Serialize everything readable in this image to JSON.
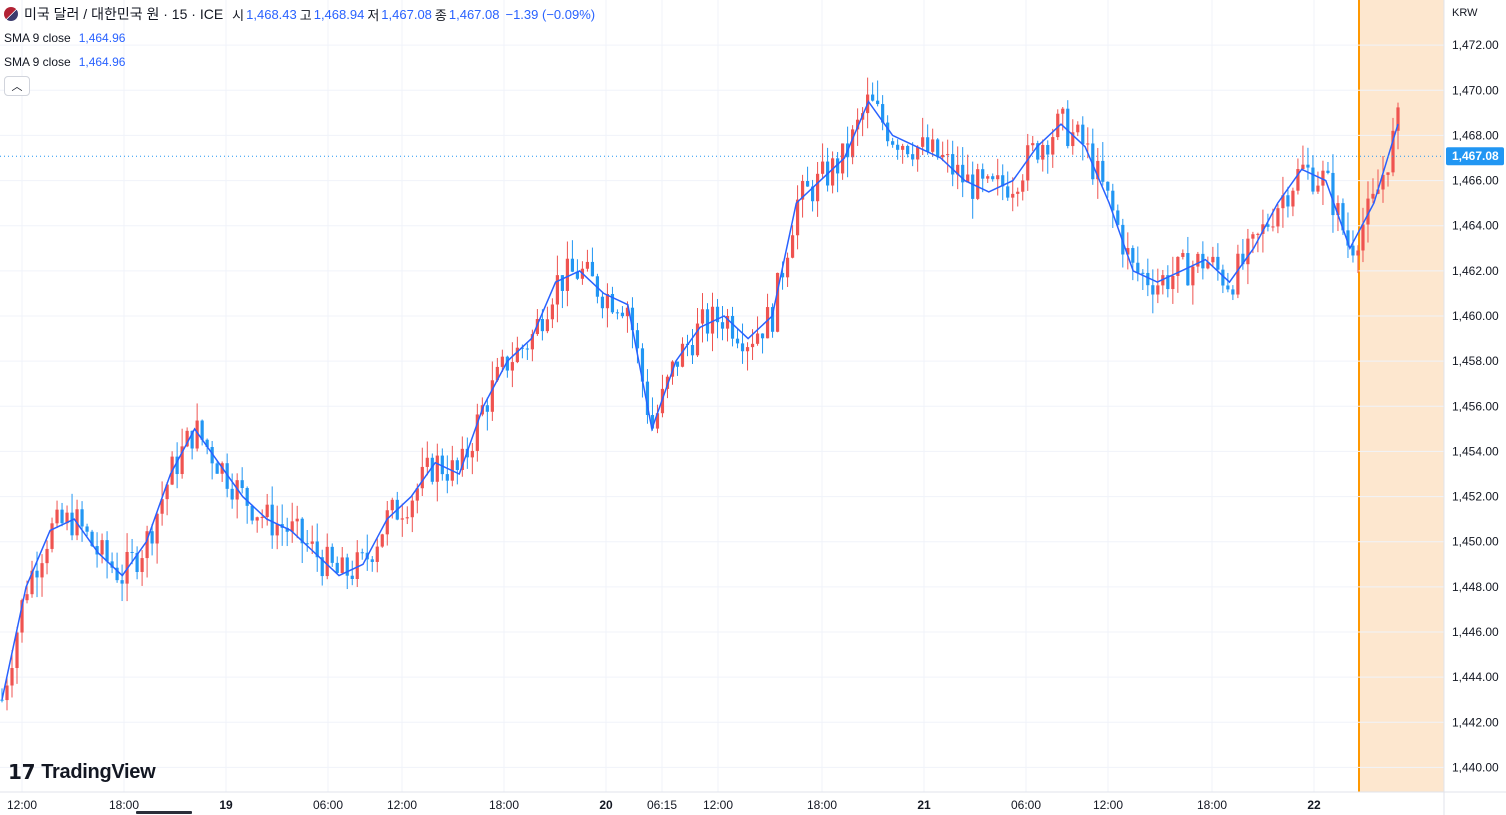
{
  "header": {
    "symbol_title": "미국 달러 / 대한민국 원 · 15 · ICE",
    "open_label": "시",
    "open_value": "1,468.43",
    "high_label": "고",
    "high_value": "1,468.94",
    "low_label": "저",
    "low_value": "1,467.08",
    "close_label": "종",
    "close_value": "1,467.08",
    "change": "−1.39 (−0.09%)"
  },
  "indicators": [
    {
      "label": "SMA 9 close",
      "value": "1,464.96"
    },
    {
      "label": "SMA 9 close",
      "value": "1,464.96"
    }
  ],
  "currency": "KRW",
  "price_tag": "1,467.08",
  "logo_text": "TradingView",
  "colors": {
    "up": "#ef5350",
    "down": "#2196f3",
    "sma": "#2962ff",
    "session": "#fde7cf",
    "session_line": "#ff9800"
  },
  "chart_data": {
    "type": "candlestick",
    "y_ticks": [
      "1,440.00",
      "1,442.00",
      "1,444.00",
      "1,446.00",
      "1,448.00",
      "1,450.00",
      "1,452.00",
      "1,454.00",
      "1,456.00",
      "1,458.00",
      "1,460.00",
      "1,462.00",
      "1,464.00",
      "1,466.00",
      "1,468.00",
      "1,470.00",
      "1,472.00"
    ],
    "y_tick_values": [
      1440,
      1442,
      1444,
      1446,
      1448,
      1450,
      1452,
      1454,
      1456,
      1458,
      1460,
      1462,
      1464,
      1466,
      1468,
      1470,
      1472
    ],
    "x_labels": [
      "12:00",
      "18:00",
      "19",
      "06:00",
      "12:00",
      "18:00",
      "20",
      "06:15",
      "12:00",
      "18:00",
      "21",
      "06:00",
      "12:00",
      "18:00",
      "22"
    ],
    "ylim": [
      1439.0,
      1474.0
    ],
    "last_price": 1467.08,
    "sma_series_name": "SMA 9 close",
    "series": [
      {
        "x": 0.0,
        "y": 1443.0
      },
      {
        "x": 0.5,
        "y": 1448.0
      },
      {
        "x": 1.0,
        "y": 1450.5
      },
      {
        "x": 1.5,
        "y": 1451.0
      },
      {
        "x": 2.0,
        "y": 1449.5
      },
      {
        "x": 2.5,
        "y": 1448.5
      },
      {
        "x": 3.0,
        "y": 1450.0
      },
      {
        "x": 3.5,
        "y": 1453.0
      },
      {
        "x": 4.0,
        "y": 1455.0
      },
      {
        "x": 4.5,
        "y": 1453.5
      },
      {
        "x": 5.0,
        "y": 1452.0
      },
      {
        "x": 5.5,
        "y": 1451.0
      },
      {
        "x": 6.0,
        "y": 1450.5
      },
      {
        "x": 6.5,
        "y": 1449.5
      },
      {
        "x": 7.0,
        "y": 1448.5
      },
      {
        "x": 7.5,
        "y": 1449.0
      },
      {
        "x": 8.0,
        "y": 1451.0
      },
      {
        "x": 8.5,
        "y": 1452.0
      },
      {
        "x": 9.0,
        "y": 1453.5
      },
      {
        "x": 9.5,
        "y": 1453.0
      },
      {
        "x": 10.0,
        "y": 1456.0
      },
      {
        "x": 10.5,
        "y": 1458.0
      },
      {
        "x": 11.0,
        "y": 1459.0
      },
      {
        "x": 11.5,
        "y": 1461.5
      },
      {
        "x": 12.0,
        "y": 1462.0
      },
      {
        "x": 12.5,
        "y": 1461.0
      },
      {
        "x": 13.0,
        "y": 1460.5
      },
      {
        "x": 13.5,
        "y": 1455.0
      },
      {
        "x": 14.0,
        "y": 1458.0
      },
      {
        "x": 14.5,
        "y": 1459.5
      },
      {
        "x": 15.0,
        "y": 1460.0
      },
      {
        "x": 15.5,
        "y": 1459.0
      },
      {
        "x": 16.0,
        "y": 1460.0
      },
      {
        "x": 16.5,
        "y": 1465.0
      },
      {
        "x": 17.0,
        "y": 1466.0
      },
      {
        "x": 17.5,
        "y": 1467.0
      },
      {
        "x": 18.0,
        "y": 1469.5
      },
      {
        "x": 18.5,
        "y": 1468.0
      },
      {
        "x": 19.0,
        "y": 1467.5
      },
      {
        "x": 19.5,
        "y": 1467.0
      },
      {
        "x": 20.0,
        "y": 1466.0
      },
      {
        "x": 20.5,
        "y": 1465.5
      },
      {
        "x": 21.0,
        "y": 1466.0
      },
      {
        "x": 21.5,
        "y": 1467.5
      },
      {
        "x": 22.0,
        "y": 1468.5
      },
      {
        "x": 22.5,
        "y": 1467.5
      },
      {
        "x": 23.0,
        "y": 1465.0
      },
      {
        "x": 23.5,
        "y": 1462.0
      },
      {
        "x": 24.0,
        "y": 1461.5
      },
      {
        "x": 24.5,
        "y": 1462.0
      },
      {
        "x": 25.0,
        "y": 1462.5
      },
      {
        "x": 25.5,
        "y": 1461.5
      },
      {
        "x": 26.0,
        "y": 1463.0
      },
      {
        "x": 26.5,
        "y": 1465.0
      },
      {
        "x": 27.0,
        "y": 1466.5
      },
      {
        "x": 27.5,
        "y": 1466.0
      },
      {
        "x": 28.0,
        "y": 1463.0
      },
      {
        "x": 28.5,
        "y": 1465.0
      },
      {
        "x": 29.0,
        "y": 1468.5
      }
    ]
  }
}
